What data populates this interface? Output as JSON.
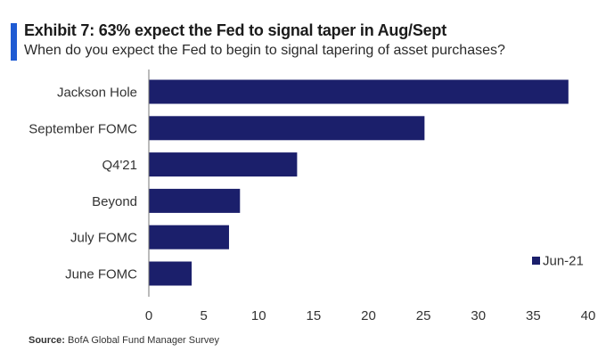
{
  "header": {
    "title": "Exhibit 7: 63% expect the Fed to signal taper in Aug/Sept",
    "subtitle": "When do you expect the Fed to begin to signal tapering of asset purchases?"
  },
  "footer": {
    "source_label": "Source:",
    "source_text": "BofA Global Fund Manager Survey"
  },
  "colors": {
    "bar": "#1b1f6b",
    "accent": "#1f5bd3"
  },
  "chart_data": {
    "type": "bar",
    "orientation": "horizontal",
    "categories": [
      "Jackson Hole",
      "September FOMC",
      "Q4'21",
      "Beyond",
      "July FOMC",
      "June FOMC"
    ],
    "series": [
      {
        "name": "Jun-21",
        "values": [
          38.2,
          25.1,
          13.5,
          8.3,
          7.3,
          3.9
        ]
      }
    ],
    "xlim": [
      0,
      40
    ],
    "xticks": [
      0,
      5,
      10,
      15,
      20,
      25,
      30,
      35,
      40
    ],
    "legend_position": "bottom-right",
    "grid": false
  }
}
